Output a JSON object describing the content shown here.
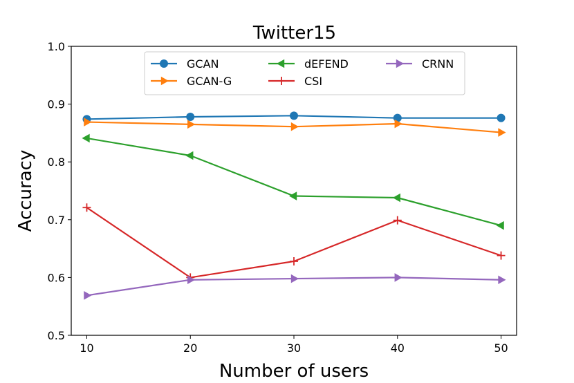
{
  "chart_data": {
    "type": "line",
    "title": "Twitter15",
    "xlabel": "Number of users",
    "ylabel": "Accuracy",
    "x": [
      10,
      20,
      30,
      40,
      50
    ],
    "xticks": [
      "10",
      "20",
      "30",
      "40",
      "50"
    ],
    "yticks": [
      "0.5",
      "0.6",
      "0.7",
      "0.8",
      "0.9",
      "1.0"
    ],
    "xlim": [
      8.5,
      51.5
    ],
    "ylim": [
      0.5,
      1.0
    ],
    "legend_position": "upper-center",
    "series": [
      {
        "name": "GCAN",
        "color": "#1f77b4",
        "marker": "circle",
        "values": [
          0.874,
          0.878,
          0.88,
          0.876,
          0.876
        ]
      },
      {
        "name": "GCAN-G",
        "color": "#ff7f0e",
        "marker": "triangle-right",
        "values": [
          0.869,
          0.865,
          0.861,
          0.866,
          0.851
        ]
      },
      {
        "name": "dEFEND",
        "color": "#2ca02c",
        "marker": "triangle-left",
        "values": [
          0.841,
          0.811,
          0.741,
          0.738,
          0.69
        ]
      },
      {
        "name": "CSI",
        "color": "#d62728",
        "marker": "plus",
        "values": [
          0.721,
          0.6,
          0.628,
          0.699,
          0.638
        ]
      },
      {
        "name": "CRNN",
        "color": "#9467bd",
        "marker": "triangle-right",
        "values": [
          0.569,
          0.596,
          0.598,
          0.6,
          0.596
        ]
      }
    ]
  }
}
